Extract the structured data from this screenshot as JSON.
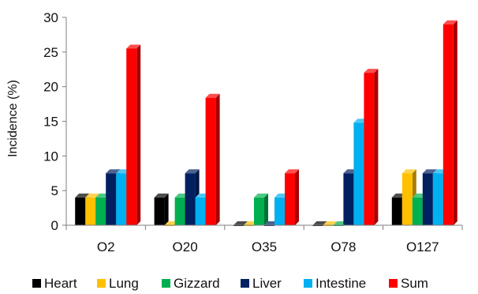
{
  "chart_data": {
    "type": "bar",
    "categories": [
      "O2",
      "O20",
      "O35",
      "O78",
      "O127"
    ],
    "ylabel": "Incidence (%)",
    "ylim": [
      0,
      30
    ],
    "yticks": [
      0,
      5,
      10,
      15,
      20,
      25,
      30
    ],
    "bar_style": "3d",
    "legend_position": "bottom",
    "series": [
      {
        "name": "Heart",
        "color": "#000000",
        "values": [
          4,
          4,
          0,
          0,
          4
        ]
      },
      {
        "name": "Lung",
        "color": "#FFC000",
        "values": [
          4,
          0,
          0,
          0,
          7.5
        ]
      },
      {
        "name": "Gizzard",
        "color": "#00B050",
        "values": [
          4,
          4,
          4,
          0,
          4
        ]
      },
      {
        "name": "Liver",
        "color": "#002060",
        "values": [
          7.5,
          7.5,
          0,
          7.5,
          7.5
        ]
      },
      {
        "name": "Intestine",
        "color": "#00B0F0",
        "values": [
          7.5,
          4,
          4,
          14.8,
          7.5
        ]
      },
      {
        "name": "Sum",
        "color": "#FF0000",
        "values": [
          25.5,
          18.4,
          7.5,
          22,
          29
        ]
      }
    ]
  }
}
